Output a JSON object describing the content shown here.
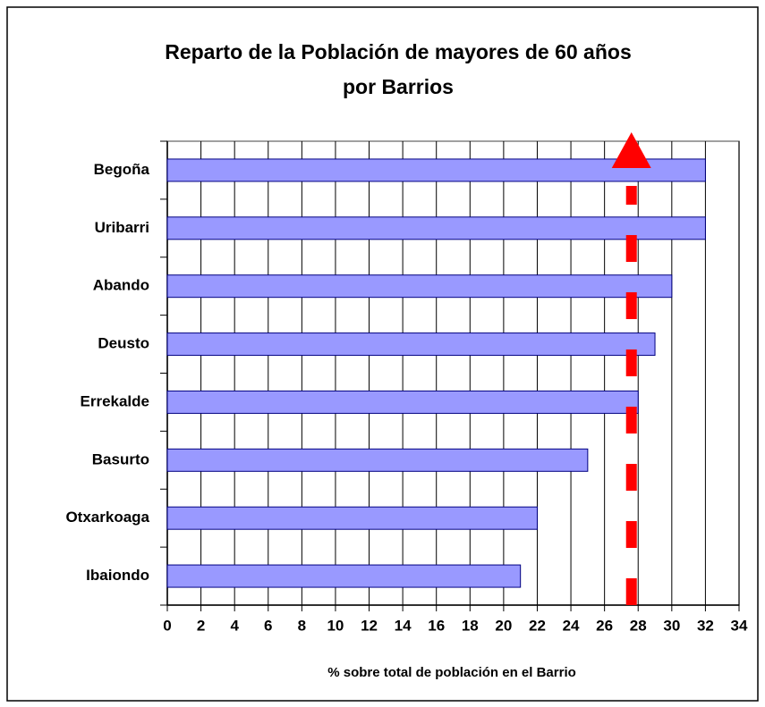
{
  "chart_data": {
    "type": "bar",
    "orientation": "horizontal",
    "title": [
      "Reparto de la Población de mayores de 60 años",
      "por Barrios"
    ],
    "xlabel": "% sobre total de población en el  Barrio",
    "categories": [
      "Begoña",
      "Uribarri",
      "Abando",
      "Deusto",
      "Errekalde",
      "Basurto",
      "Otxarkoaga",
      "Ibaiondo"
    ],
    "values": [
      32,
      32,
      30,
      29,
      28,
      25,
      22,
      21
    ],
    "color": "#9999ff",
    "xlim": [
      0,
      34
    ],
    "xticks": [
      0,
      2,
      4,
      6,
      8,
      10,
      12,
      14,
      16,
      18,
      20,
      22,
      24,
      26,
      28,
      30,
      32,
      34
    ],
    "grid": true,
    "reference_value": 27.6,
    "reference_color": "#ff0000"
  }
}
